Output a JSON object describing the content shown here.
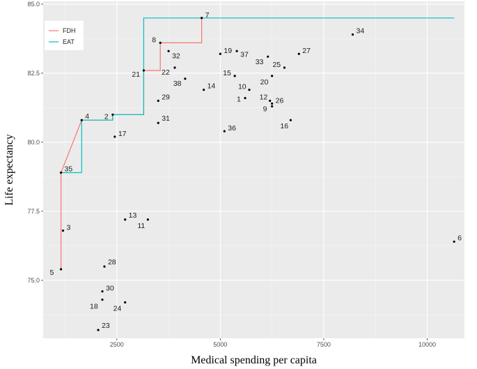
{
  "chart_data": {
    "type": "scatter",
    "xlabel": "Medical spending per capita",
    "ylabel": "Life expectancy",
    "xlim": [
      720,
      10900
    ],
    "ylim": [
      72.9,
      85.1
    ],
    "xticks": [
      2500,
      5000,
      7500,
      10000
    ],
    "xtick_labels": [
      "2500",
      "5000",
      "7500",
      "10000"
    ],
    "yticks": [
      75,
      77.5,
      80,
      82.5,
      85
    ],
    "ytick_labels": [
      "75.0",
      "77.5",
      "80.0",
      "82.5",
      "85.0"
    ],
    "grid": true,
    "legend": {
      "position": "top-left",
      "entries": [
        {
          "name": "FDH",
          "color": "#f8766d"
        },
        {
          "name": "EAT",
          "color": "#00bfc4"
        }
      ]
    },
    "points": [
      {
        "label": "1",
        "x": 5600,
        "y": 81.6
      },
      {
        "label": "2",
        "x": 2400,
        "y": 81.0
      },
      {
        "label": "3",
        "x": 1200,
        "y": 76.8
      },
      {
        "label": "4",
        "x": 1650,
        "y": 80.8
      },
      {
        "label": "5",
        "x": 1150,
        "y": 75.4
      },
      {
        "label": "6",
        "x": 10650,
        "y": 76.4
      },
      {
        "label": "7",
        "x": 4550,
        "y": 84.5
      },
      {
        "label": "8",
        "x": 3550,
        "y": 83.6
      },
      {
        "label": "9",
        "x": 6250,
        "y": 81.3
      },
      {
        "label": "10",
        "x": 5700,
        "y": 81.9
      },
      {
        "label": "11",
        "x": 3250,
        "y": 77.2
      },
      {
        "label": "12",
        "x": 6200,
        "y": 81.5
      },
      {
        "label": "13",
        "x": 2700,
        "y": 77.2
      },
      {
        "label": "14",
        "x": 4600,
        "y": 81.9
      },
      {
        "label": "15",
        "x": 5350,
        "y": 82.4
      },
      {
        "label": "16",
        "x": 6700,
        "y": 80.8
      },
      {
        "label": "17",
        "x": 2450,
        "y": 80.2
      },
      {
        "label": "18",
        "x": 2150,
        "y": 74.3
      },
      {
        "label": "19",
        "x": 5000,
        "y": 83.2
      },
      {
        "label": "20",
        "x": 6250,
        "y": 82.4
      },
      {
        "label": "21",
        "x": 3150,
        "y": 82.6
      },
      {
        "label": "22",
        "x": 3900,
        "y": 82.7
      },
      {
        "label": "23",
        "x": 2050,
        "y": 73.2
      },
      {
        "label": "24",
        "x": 2700,
        "y": 74.2
      },
      {
        "label": "25",
        "x": 6550,
        "y": 82.7
      },
      {
        "label": "26",
        "x": 6250,
        "y": 81.4
      },
      {
        "label": "27",
        "x": 6900,
        "y": 83.2
      },
      {
        "label": "28",
        "x": 2200,
        "y": 75.5
      },
      {
        "label": "29",
        "x": 3500,
        "y": 81.5
      },
      {
        "label": "30",
        "x": 2150,
        "y": 74.6
      },
      {
        "label": "31",
        "x": 3500,
        "y": 80.7
      },
      {
        "label": "32",
        "x": 3750,
        "y": 83.3
      },
      {
        "label": "33",
        "x": 6150,
        "y": 83.1
      },
      {
        "label": "34",
        "x": 8200,
        "y": 83.9
      },
      {
        "label": "35",
        "x": 1150,
        "y": 78.9
      },
      {
        "label": "36",
        "x": 5100,
        "y": 80.4
      },
      {
        "label": "37",
        "x": 5400,
        "y": 83.3
      },
      {
        "label": "38",
        "x": 4150,
        "y": 82.3
      }
    ],
    "frontiers": [
      {
        "name": "FDH",
        "color": "#f8766d",
        "x": [
          1150,
          1150,
          1150,
          1650,
          2400,
          2400,
          3150,
          3150,
          3550,
          3550,
          4550,
          4550
        ],
        "y": [
          75.4,
          78.9,
          78.9,
          80.8,
          80.8,
          81.0,
          81.0,
          82.6,
          82.6,
          83.6,
          83.6,
          84.5
        ]
      },
      {
        "name": "EAT",
        "color": "#00bfc4",
        "x": [
          1150,
          1150,
          1650,
          1650,
          2400,
          2400,
          3150,
          3150,
          10650
        ],
        "y": [
          78.9,
          78.9,
          78.9,
          80.8,
          80.8,
          81.0,
          81.0,
          84.5,
          84.5
        ]
      }
    ]
  }
}
